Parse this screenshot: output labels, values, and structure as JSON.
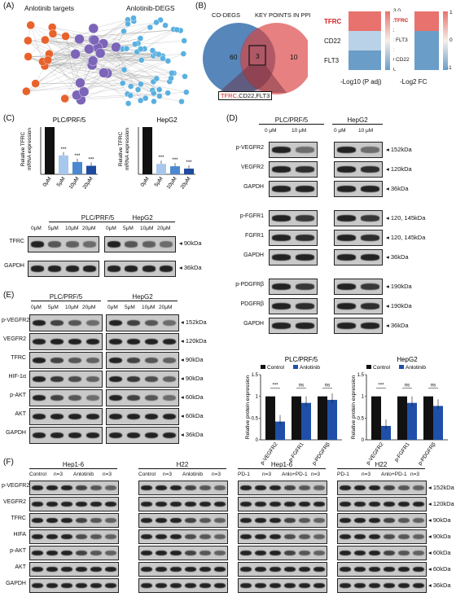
{
  "panel_labels": {
    "a": "(A)",
    "b": "(B)",
    "c": "(C)",
    "d": "(D)",
    "e": "(E)",
    "f": "(F)"
  },
  "panel_a": {
    "left_title": "Anlotinib targets",
    "right_title": "Anlotinib-DEGS"
  },
  "panel_b": {
    "venn_left": "CO-DEGS",
    "venn_right": "KEY POINTS IN PPI",
    "left_count": "60",
    "mid_count": "3",
    "right_count": "10",
    "intersection_red": "TFRC",
    "intersection_rest": ",CD22,FLT3",
    "heat1": {
      "genes": [
        "TFRC",
        "CD22",
        "FLT3"
      ],
      "ticks": [
        "3.0",
        "2.5",
        "2.0",
        "1.5",
        "1.0",
        "0.5",
        "0"
      ],
      "xlabel": "-Log10 (P adj)"
    },
    "heat2": {
      "genes": [
        "TFRC",
        "FLT3",
        "CD22"
      ],
      "ticks": [
        "1",
        "0",
        "-1"
      ],
      "xlabel": "-Log2 FC"
    }
  },
  "panel_c": {
    "ylabel": "Relative TFRC mRNA expression",
    "charts": [
      {
        "title": "PLC/PRF/5",
        "categories": [
          "0μM",
          "5μM",
          "10μM",
          "20μM"
        ],
        "values": [
          1.0,
          0.4,
          0.26,
          0.18
        ],
        "sig": [
          "",
          "***",
          "***",
          "***"
        ]
      },
      {
        "title": "HepG2",
        "categories": [
          "0μM",
          "5μM",
          "10μM",
          "20μM"
        ],
        "values": [
          1.0,
          0.22,
          0.17,
          0.12
        ],
        "sig": [
          "",
          "***",
          "***",
          "***"
        ]
      }
    ],
    "blot_groups": [
      "PLC/PRF/5",
      "HepG2"
    ],
    "doses": [
      "0μM",
      "5μM",
      "10μM",
      "20μM"
    ],
    "rows": [
      "TFRC",
      "GAPDH"
    ],
    "kda": [
      "90kDa",
      "36kDa"
    ]
  },
  "panel_d": {
    "groups": [
      "PLC/PRF/5",
      "HepG2"
    ],
    "doses": [
      "0 μM",
      "10 μM"
    ],
    "rows": [
      "p-VEGFR2",
      "VEGFR2",
      "GAPDH",
      "p-FGFR1",
      "FGFR1",
      "GAPDH",
      "p-PDGFRβ",
      "PDGFRβ",
      "GAPDH"
    ],
    "kda": [
      "152kDa",
      "120kDa",
      "36kDa",
      "120, 145kDa",
      "120, 145kDa",
      "36kDa",
      "190kDa",
      "190kDa",
      "36kDa"
    ],
    "bar_ylabel": "Relative protein expression",
    "legend": [
      "Control",
      "Anlotinib"
    ],
    "colors": {
      "control": "#111111",
      "anlotinib": "#1f4fa8"
    },
    "charts": [
      {
        "title": "PLC/PRF/5",
        "categories": [
          "p-VEGFR2",
          "p-FGFR1",
          "p-PDGFRβ"
        ],
        "control": [
          1.0,
          1.0,
          1.0
        ],
        "anlotinib": [
          0.42,
          0.85,
          0.92
        ],
        "sig": [
          "***",
          "ns",
          "ns"
        ],
        "yticks": [
          "0",
          "0.5",
          "1",
          "1.5"
        ]
      },
      {
        "title": "HepG2",
        "categories": [
          "p-VEGFR2",
          "p-FGFR1",
          "p-PDGFRβ"
        ],
        "control": [
          1.0,
          1.0,
          1.0
        ],
        "anlotinib": [
          0.32,
          0.85,
          0.78
        ],
        "sig": [
          "***",
          "ns",
          "ns"
        ],
        "yticks": [
          "0",
          "0.5",
          "1",
          "1.5"
        ]
      }
    ]
  },
  "panel_e": {
    "groups": [
      "PLC/PRF/5",
      "HepG2"
    ],
    "doses": [
      "0μM",
      "5μM",
      "10μM",
      "20μM"
    ],
    "rows": [
      "p-VEGFR2",
      "VEGFR2",
      "TFRC",
      "HIF-1α",
      "p-AKT",
      "AKT",
      "GAPDH"
    ],
    "kda": [
      "152kDa",
      "120kDa",
      "90kDa",
      "90kDa",
      "60kDa",
      "60kDa",
      "36kDa"
    ]
  },
  "panel_f": {
    "groups": [
      {
        "title": "Hep1-6",
        "cols": [
          "Control",
          "n=3",
          "Anlotinib",
          "n=3"
        ]
      },
      {
        "title": "H22",
        "cols": [
          "Control",
          "n=3",
          "Anlotinib",
          "n=3"
        ]
      },
      {
        "title": "Hep1-6",
        "cols": [
          "PD-1",
          "n=3",
          "Anlo+PD-1",
          "n=3"
        ]
      },
      {
        "title": "H22",
        "cols": [
          "PD-1",
          "n=3",
          "Anlo+PD-1",
          "n=3"
        ]
      }
    ],
    "rows": [
      "p-VEGFR2",
      "VEGFR2",
      "TFRC",
      "HIFA",
      "p-AKT",
      "AKT",
      "GAPDH"
    ],
    "kda": [
      "152kDa",
      "120kDa",
      "90kDa",
      "90kDa",
      "60kDa",
      "60kDa",
      "36kDa"
    ]
  }
}
